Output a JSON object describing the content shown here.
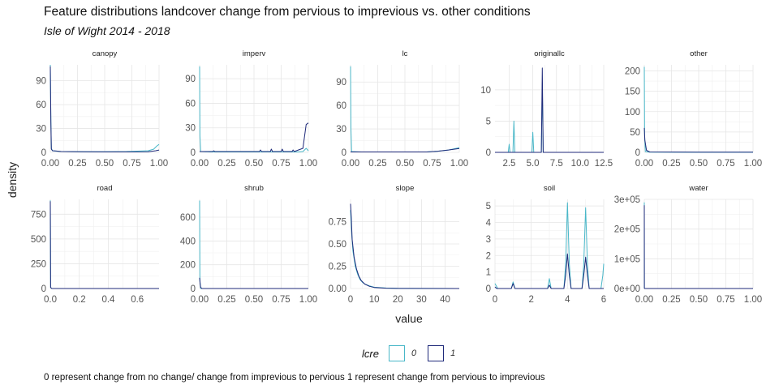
{
  "title": "Feature distributions landcover change from pervious to imprevious vs. other conditions",
  "subtitle": "Isle of Wight 2014 - 2018",
  "caption": "0 represent change from no change/ change from imprevious to pervious 1 represent change from pervious to imprevious",
  "legend": {
    "title": "lcre",
    "entries": [
      {
        "label": "0",
        "color": "#49B7C8"
      },
      {
        "label": "1",
        "color": "#1F2A7A"
      }
    ]
  },
  "chart_data": {
    "type": "line",
    "kind": "density facets",
    "xlabel": "value",
    "ylabel": "density",
    "series_names": [
      "0",
      "1"
    ],
    "series_colors": [
      "#49B7C8",
      "#1F2A7A"
    ],
    "facets": [
      {
        "name": "canopy",
        "xlim": [
          0,
          1
        ],
        "ylim": [
          0,
          110
        ],
        "xticks": [
          0,
          0.25,
          0.5,
          0.75,
          1
        ],
        "xtick_labels": [
          "0.00",
          "0.25",
          "0.50",
          "0.75",
          "1.00"
        ],
        "yticks": [
          0,
          30,
          60,
          90
        ],
        "ytick_labels": [
          "0",
          "30",
          "60",
          "90"
        ],
        "series": [
          {
            "x": [
              0,
              0.005,
              0.01,
              0.02,
              0.05,
              0.1,
              0.3,
              0.5,
              0.7,
              0.9,
              0.95,
              0.98,
              1.0
            ],
            "y": [
              110,
              40,
              5,
              2,
              1.5,
              1,
              0.8,
              0.8,
              1,
              2,
              4,
              8,
              10
            ]
          },
          {
            "x": [
              0,
              0.005,
              0.01,
              0.02,
              0.05,
              0.1,
              0.3,
              0.5,
              0.7,
              0.9,
              0.97,
              1.0
            ],
            "y": [
              108,
              38,
              4,
              2,
              1.8,
              1,
              0.8,
              0.6,
              0.6,
              0.8,
              2,
              3
            ]
          }
        ]
      },
      {
        "name": "imperv",
        "xlim": [
          0,
          1
        ],
        "ylim": [
          0,
          107
        ],
        "xticks": [
          0,
          0.25,
          0.5,
          0.75,
          1
        ],
        "xtick_labels": [
          "0.00",
          "0.25",
          "0.50",
          "0.75",
          "1.00"
        ],
        "yticks": [
          0,
          30,
          60,
          90
        ],
        "ytick_labels": [
          "0",
          "30",
          "60",
          "90"
        ],
        "series": [
          {
            "x": [
              0,
              0.003,
              0.01,
              0.1,
              0.3,
              0.5,
              0.7,
              0.9,
              0.95,
              0.98,
              1.0
            ],
            "y": [
              105,
              20,
              1,
              0.5,
              0.5,
              0.5,
              0.5,
              0.5,
              1,
              5,
              2
            ]
          },
          {
            "x": [
              0,
              0.12,
              0.13,
              0.14,
              0.3,
              0.55,
              0.56,
              0.57,
              0.65,
              0.66,
              0.67,
              0.75,
              0.76,
              0.77,
              0.85,
              0.86,
              0.87,
              0.95,
              0.98,
              1.0
            ],
            "y": [
              1,
              1,
              2,
              1,
              1,
              1,
              3,
              1,
              1,
              4,
              1,
              1,
              4,
              1,
              1,
              3,
              1,
              5,
              34,
              36
            ]
          }
        ]
      },
      {
        "name": "lc",
        "xlim": [
          0,
          1
        ],
        "ylim": [
          0,
          112
        ],
        "xticks": [
          0,
          0.25,
          0.5,
          0.75,
          1
        ],
        "xtick_labels": [
          "0.00",
          "0.25",
          "0.50",
          "0.75",
          "1.00"
        ],
        "yticks": [
          0,
          30,
          60,
          90
        ],
        "ytick_labels": [
          "0",
          "30",
          "60",
          "90"
        ],
        "series": [
          {
            "x": [
              0,
              0.004,
              0.01,
              0.1,
              0.5,
              0.7,
              0.8,
              0.9,
              1.0
            ],
            "y": [
              110,
              30,
              1,
              0.5,
              0.5,
              0.5,
              1.5,
              3,
              6
            ]
          },
          {
            "x": [
              0,
              0.1,
              0.5,
              0.7,
              0.8,
              0.9,
              1.0
            ],
            "y": [
              0.5,
              0.5,
              0.5,
              0.5,
              1.5,
              3,
              5
            ]
          }
        ]
      },
      {
        "name": "originallc",
        "xlim": [
          1,
          12.5
        ],
        "ylim": [
          0,
          14
        ],
        "xticks": [
          2.5,
          5,
          7.5,
          10,
          12.5
        ],
        "xtick_labels": [
          "2.5",
          "5.0",
          "7.5",
          "10.0",
          "12.5"
        ],
        "yticks": [
          0,
          5,
          10
        ],
        "ytick_labels": [
          "0",
          "5",
          "10"
        ],
        "series": [
          {
            "x": [
              1,
              2.4,
              2.5,
              2.6,
              2.9,
              3.0,
              3.1,
              4.9,
              5.0,
              5.1,
              5.9,
              6.0,
              6.1,
              12.5
            ],
            "y": [
              0,
              0,
              1.3,
              0,
              0,
              5,
              0,
              0,
              3.2,
              0,
              0,
              11,
              0,
              0
            ]
          },
          {
            "x": [
              1,
              5.9,
              6.0,
              6.1,
              12.5
            ],
            "y": [
              0,
              0,
              13.5,
              0,
              0
            ]
          }
        ]
      },
      {
        "name": "other",
        "xlim": [
          0,
          1
        ],
        "ylim": [
          0,
          215
        ],
        "xticks": [
          0,
          0.25,
          0.5,
          0.75,
          1
        ],
        "xtick_labels": [
          "0.00",
          "0.25",
          "0.50",
          "0.75",
          "1.00"
        ],
        "yticks": [
          0,
          50,
          100,
          150,
          200
        ],
        "ytick_labels": [
          "0",
          "50",
          "100",
          "150",
          "200"
        ],
        "series": [
          {
            "x": [
              0,
              0.003,
              0.01,
              0.05,
              0.5,
              1.0
            ],
            "y": [
              210,
              40,
              2,
              0.5,
              0.2,
              0.2
            ]
          },
          {
            "x": [
              0,
              0.005,
              0.02,
              0.05,
              0.5,
              1.0
            ],
            "y": [
              60,
              30,
              5,
              1,
              0.3,
              0.3
            ]
          }
        ]
      },
      {
        "name": "road",
        "xlim": [
          0,
          0.75
        ],
        "ylim": [
          0,
          900
        ],
        "xticks": [
          0,
          0.2,
          0.4,
          0.6
        ],
        "xtick_labels": [
          "0.0",
          "0.2",
          "0.4",
          "0.6"
        ],
        "yticks": [
          0,
          250,
          500,
          750
        ],
        "ytick_labels": [
          "0",
          "250",
          "500",
          "750"
        ],
        "series": [
          {
            "x": [
              0,
              0.002,
              0.01,
              0.75
            ],
            "y": [
              890,
              10,
              0,
              0
            ]
          },
          {
            "x": [
              0,
              0.002,
              0.01,
              0.75
            ],
            "y": [
              880,
              10,
              0,
              0
            ]
          }
        ]
      },
      {
        "name": "shrub",
        "xlim": [
          0,
          1
        ],
        "ylim": [
          0,
          750
        ],
        "xticks": [
          0,
          0.25,
          0.5,
          0.75,
          1
        ],
        "xtick_labels": [
          "0.00",
          "0.25",
          "0.50",
          "0.75",
          "1.00"
        ],
        "yticks": [
          0,
          200,
          400,
          600
        ],
        "ytick_labels": [
          "0",
          "200",
          "400",
          "600"
        ],
        "series": [
          {
            "x": [
              0,
              0.003,
              0.01,
              1.0
            ],
            "y": [
              740,
              60,
              0,
              0
            ]
          },
          {
            "x": [
              0,
              0.005,
              0.01,
              0.02,
              1.0
            ],
            "y": [
              90,
              40,
              10,
              0,
              0
            ]
          }
        ]
      },
      {
        "name": "slope",
        "xlim": [
          0,
          46
        ],
        "ylim": [
          0,
          1.0
        ],
        "xticks": [
          0,
          10,
          20,
          30,
          40
        ],
        "xtick_labels": [
          "0",
          "10",
          "20",
          "30",
          "40"
        ],
        "yticks": [
          0,
          0.25,
          0.5,
          0.75
        ],
        "ytick_labels": [
          "0.00",
          "0.25",
          "0.50",
          "0.75"
        ],
        "series": [
          {
            "x": [
              0,
              0.5,
              1,
              2,
              3,
              4,
              5,
              6,
              8,
              10,
              15,
              20,
              46
            ],
            "y": [
              0.88,
              0.6,
              0.42,
              0.25,
              0.16,
              0.1,
              0.07,
              0.05,
              0.03,
              0.015,
              0.005,
              0.002,
              0
            ]
          },
          {
            "x": [
              0,
              0.3,
              0.7,
              1.5,
              2.5,
              3.5,
              4.5,
              6,
              8,
              10,
              15,
              20,
              46
            ],
            "y": [
              0.95,
              0.8,
              0.55,
              0.35,
              0.22,
              0.14,
              0.09,
              0.05,
              0.025,
              0.012,
              0.004,
              0.001,
              0
            ]
          }
        ]
      },
      {
        "name": "soil",
        "xlim": [
          0,
          6
        ],
        "ylim": [
          0,
          5.4
        ],
        "xticks": [
          0,
          2,
          4,
          6
        ],
        "xtick_labels": [
          "0",
          "2",
          "4",
          "6"
        ],
        "yticks": [
          0,
          1,
          2,
          3,
          4,
          5
        ],
        "ytick_labels": [
          "0",
          "1",
          "2",
          "3",
          "4",
          "5"
        ],
        "series": [
          {
            "x": [
              0,
              0.05,
              0.15,
              0.9,
              1.0,
              1.1,
              2.9,
              3.0,
              3.1,
              3.8,
              3.9,
              4.0,
              4.1,
              4.2,
              4.8,
              4.9,
              5.0,
              5.1,
              5.2,
              5.85,
              5.95,
              6.0
            ],
            "y": [
              0.3,
              0.2,
              0,
              0,
              0.4,
              0,
              0,
              0.6,
              0,
              0,
              1.5,
              5.2,
              1.5,
              0,
              0,
              1.5,
              4.9,
              1.5,
              0,
              0,
              0.8,
              1.5
            ]
          },
          {
            "x": [
              0,
              0.1,
              0.9,
              1.0,
              1.1,
              2.9,
              3.0,
              3.1,
              3.8,
              3.9,
              4.0,
              4.1,
              4.2,
              4.8,
              4.9,
              5.0,
              5.1,
              5.2,
              6.0
            ],
            "y": [
              0.1,
              0,
              0,
              0.3,
              0,
              0,
              0.2,
              0,
              0,
              0.8,
              2.1,
              0.8,
              0,
              0,
              0.8,
              1.9,
              0.8,
              0,
              0
            ]
          }
        ]
      },
      {
        "name": "water",
        "xlim": [
          0,
          1
        ],
        "ylim": [
          0,
          300000
        ],
        "xticks": [
          0,
          0.25,
          0.5,
          0.75,
          1
        ],
        "xtick_labels": [
          "0.00",
          "0.25",
          "0.50",
          "0.75",
          "1.00"
        ],
        "yticks": [
          0,
          100000,
          200000,
          300000
        ],
        "ytick_labels": [
          "0e+00",
          "1e+05",
          "2e+05",
          "3e+05"
        ],
        "series": [
          {
            "x": [
              0,
              0.0005,
              0.002,
              1.0
            ],
            "y": [
              290000,
              1000,
              0,
              0
            ]
          },
          {
            "x": [
              0,
              0.0005,
              0.002,
              1.0
            ],
            "y": [
              280000,
              1000,
              0,
              0
            ]
          }
        ]
      }
    ]
  }
}
